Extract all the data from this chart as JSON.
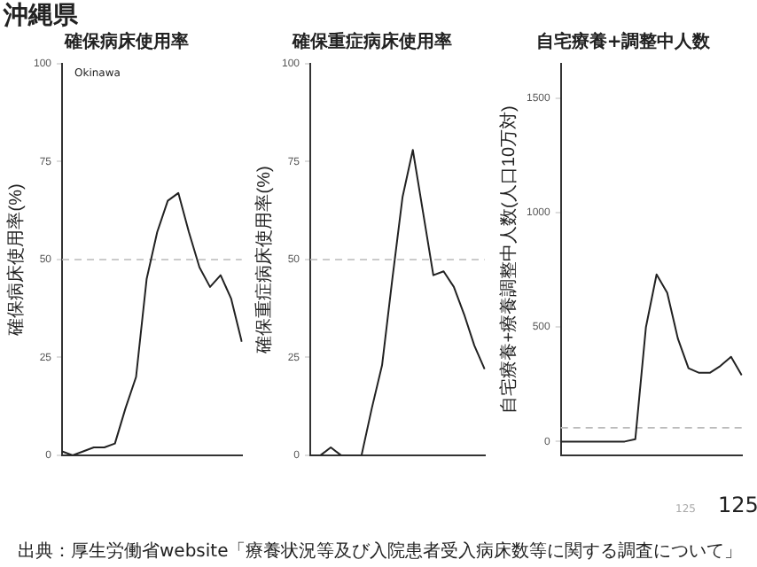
{
  "chart_data": [
    {
      "type": "line",
      "title": "確保病床使用率",
      "ylabel": "確保病床使用率(%)",
      "categories": [
        null,
        null,
        null,
        null,
        null,
        null,
        null,
        null,
        null,
        null,
        null,
        null,
        null,
        null,
        null,
        null,
        null,
        null
      ],
      "series": [
        {
          "color": "#222222",
          "values": [
            1,
            0,
            1,
            2,
            2,
            3,
            12,
            20,
            45,
            57,
            65,
            67,
            57,
            48,
            43,
            46,
            40,
            29
          ]
        }
      ],
      "ylim": [
        0,
        100
      ],
      "yticks": [
        0,
        25,
        50,
        75,
        100
      ],
      "grid": false,
      "marker": "none",
      "line_style": "solid",
      "ref_lines": [
        {
          "axis": "y",
          "value": 50,
          "color": "#bbbbbb",
          "line_style": "dashed"
        }
      ],
      "annotations": [
        "沖縄県",
        "Okinawa"
      ]
    },
    {
      "type": "line",
      "title": "確保重症病床使用率",
      "ylabel": "確保重症病床使用率(%)",
      "categories": [
        null,
        null,
        null,
        null,
        null,
        null,
        null,
        null,
        null,
        null,
        null,
        null,
        null,
        null,
        null,
        null,
        null,
        null
      ],
      "series": [
        {
          "color": "#222222",
          "values": [
            0,
            0,
            2,
            0,
            0,
            0,
            12,
            23,
            45,
            66,
            78,
            62,
            46,
            47,
            43,
            36,
            28,
            22
          ]
        }
      ],
      "ylim": [
        0,
        100
      ],
      "yticks": [
        0,
        25,
        50,
        75,
        100
      ],
      "grid": false,
      "marker": "none",
      "line_style": "solid",
      "ref_lines": [
        {
          "axis": "y",
          "value": 50,
          "color": "#bbbbbb",
          "line_style": "dashed"
        }
      ]
    },
    {
      "type": "line",
      "title": "自宅療養+調整中人数",
      "ylabel": "自宅療養+療養調整中人数(人口10万対)",
      "categories": [
        null,
        null,
        null,
        null,
        null,
        null,
        null,
        null,
        null,
        null,
        null,
        null,
        null,
        null,
        null,
        null,
        null,
        null
      ],
      "series": [
        {
          "color": "#222222",
          "values": [
            0,
            0,
            0,
            0,
            0,
            0,
            0,
            10,
            500,
            730,
            650,
            450,
            320,
            300,
            300,
            330,
            370,
            290
          ]
        }
      ],
      "ylim": [
        -60,
        1650
      ],
      "yticks": [
        0,
        500,
        1000,
        1500
      ],
      "grid": false,
      "marker": "none",
      "line_style": "solid",
      "ref_lines": [
        {
          "axis": "y",
          "value": 60,
          "color": "#bbbbbb",
          "line_style": "dashed"
        }
      ],
      "annotations": [
        "125",
        "125",
        "出典：厚生労働省website「療養状況等及び入院患者受入病床数等に関する調査について」"
      ]
    }
  ]
}
